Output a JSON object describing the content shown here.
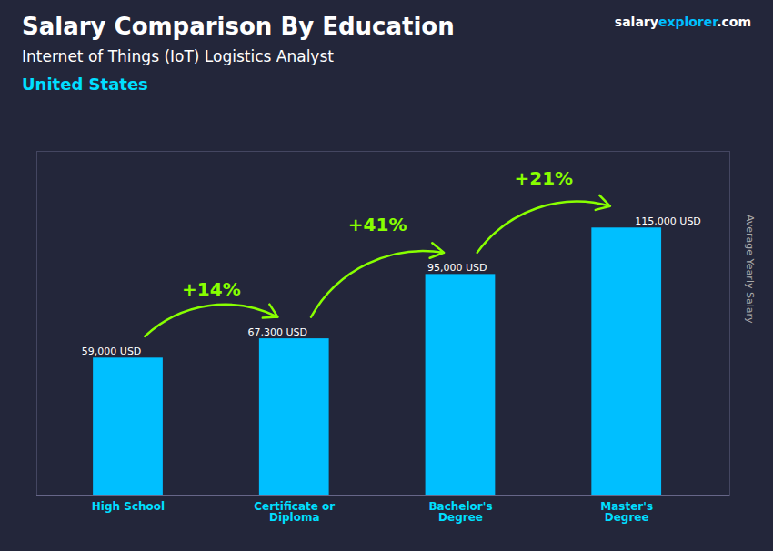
{
  "chart_data": {
    "type": "bar",
    "title": "Salary Comparison By Education",
    "subtitle": "Internet of Things (IoT) Logistics Analyst",
    "country": "United States",
    "brand": [
      "salary",
      "explorer",
      ".com"
    ],
    "ylabel": "Average Yearly Salary",
    "categories": [
      "High School",
      "Certificate or\nDiploma",
      "Bachelor's\nDegree",
      "Master's\nDegree"
    ],
    "values": [
      59000,
      67300,
      95000,
      115000
    ],
    "value_labels": [
      "59,000 USD",
      "67,300 USD",
      "95,000 USD",
      "115,000 USD"
    ],
    "data_labels": true,
    "color": "#00BFFF",
    "ylim": [
      0,
      148000
    ],
    "tick_labels": "x",
    "grid": false,
    "annotations": [
      {
        "from": 0,
        "to": 1,
        "text": "+14%",
        "color": "#88FF00"
      },
      {
        "from": 1,
        "to": 2,
        "text": "+41%",
        "color": "#88FF00"
      },
      {
        "from": 2,
        "to": 3,
        "text": "+21%",
        "color": "#88FF00"
      }
    ]
  }
}
